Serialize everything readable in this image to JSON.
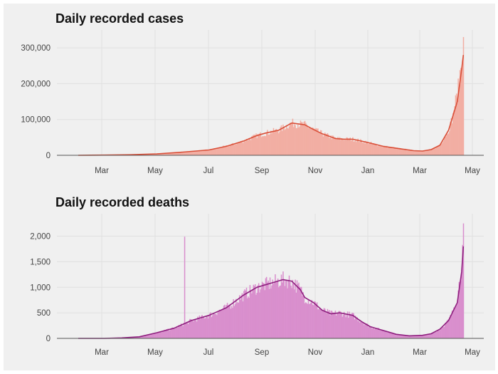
{
  "colors": {
    "background": "#f0f0f0",
    "cases_bar": "#f2aea3",
    "cases_line": "#d94f38",
    "deaths_bar": "#d98fcd",
    "deaths_line": "#8e1f7e",
    "grid": "#e0e0e0"
  },
  "chart_data": [
    {
      "type": "bar",
      "title": "Daily recorded cases",
      "xlabel": "",
      "ylabel": "",
      "x_tick_labels": [
        "Mar",
        "May",
        "Jul",
        "Sep",
        "Nov",
        "Jan",
        "Mar",
        "May"
      ],
      "y_ticks": [
        0,
        100000,
        200000,
        300000
      ],
      "y_tick_labels": [
        "0",
        "100,000",
        "200,000",
        "300,000"
      ],
      "ylim": [
        0,
        330000
      ],
      "x_range_days": [
        0,
        445
      ],
      "grid": true,
      "legend": "none",
      "series": [
        {
          "kind": "daily bars with 7-day average line",
          "x_day": [
            0,
            30,
            60,
            90,
            120,
            150,
            170,
            190,
            205,
            215,
            230,
            245,
            260,
            270,
            280,
            295,
            305,
            315,
            330,
            350,
            370,
            385,
            395,
            405,
            415,
            425,
            435,
            440,
            442
          ],
          "values": [
            0,
            500,
            1500,
            4000,
            9000,
            15000,
            25000,
            40000,
            55000,
            62000,
            70000,
            90000,
            85000,
            72000,
            60000,
            47000,
            45000,
            45000,
            37000,
            25000,
            18000,
            13000,
            12000,
            16000,
            28000,
            70000,
            150000,
            240000,
            280000
          ],
          "bar_max": 330000
        }
      ]
    },
    {
      "type": "bar",
      "title": "Daily recorded deaths",
      "xlabel": "",
      "ylabel": "",
      "x_tick_labels": [
        "Mar",
        "May",
        "Jul",
        "Sep",
        "Nov",
        "Jan",
        "Mar",
        "May"
      ],
      "y_ticks": [
        0,
        500,
        1000,
        1500,
        2000
      ],
      "y_tick_labels": [
        "0",
        "500",
        "1,000",
        "1,500",
        "2,000"
      ],
      "ylim": [
        0,
        2300
      ],
      "x_range_days": [
        0,
        445
      ],
      "grid": true,
      "legend": "none",
      "series": [
        {
          "kind": "daily bars with 7-day average line",
          "x_day": [
            0,
            30,
            50,
            70,
            90,
            110,
            130,
            150,
            170,
            190,
            205,
            215,
            225,
            235,
            245,
            255,
            260,
            270,
            280,
            290,
            300,
            315,
            325,
            335,
            345,
            355,
            365,
            380,
            395,
            405,
            415,
            425,
            435,
            440,
            442
          ],
          "values": [
            0,
            0,
            10,
            30,
            110,
            200,
            350,
            450,
            600,
            850,
            1000,
            1050,
            1100,
            1150,
            1120,
            950,
            800,
            700,
            550,
            480,
            500,
            450,
            330,
            230,
            180,
            130,
            80,
            50,
            60,
            90,
            180,
            350,
            700,
            1300,
            1800
          ],
          "bar_max": 2250,
          "spike": {
            "x_day": 122,
            "value": 1990
          }
        }
      ]
    }
  ]
}
